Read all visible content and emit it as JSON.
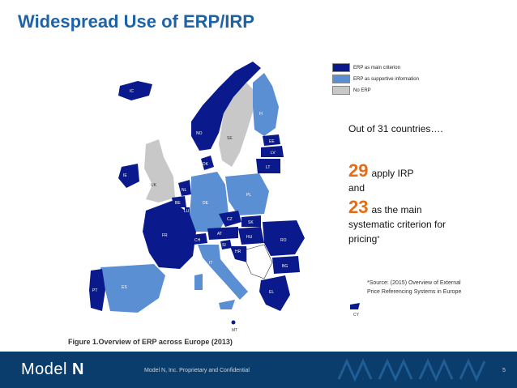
{
  "title": "Widespread Use of ERP/IRP",
  "legend": [
    {
      "label": "ERP as main criterion",
      "color": "#0a1a8c"
    },
    {
      "label": "ERP as supportive information",
      "color": "#5b8fd4"
    },
    {
      "label": "No ERP",
      "color": "#c8c8c8"
    }
  ],
  "map": {
    "countries": {
      "IC": "IC",
      "NO": "NO",
      "SE": "SE",
      "FI": "FI",
      "EE": "EE",
      "LV": "LV",
      "LT": "LT",
      "DK": "DK",
      "UK": "UK",
      "IE": "IE",
      "NL": "NL",
      "BE": "BE",
      "LU": "LU",
      "DE": "DE",
      "PL": "PL",
      "CZ": "CZ",
      "SK": "SK",
      "FR": "FR",
      "CH": "CH",
      "AT": "AT",
      "HU": "HU",
      "SI": "SI",
      "HR": "HR",
      "RO": "RO",
      "BG": "BG",
      "IT": "IT",
      "PT": "PT",
      "ES": "ES",
      "EL": "EL",
      "MT": "MT",
      "CY": "CY"
    },
    "caption": "Figure 1.Overview of ERP across Europe (2013)"
  },
  "stats": {
    "intro": "Out of 31 countries….",
    "count_irp": "29",
    "irp_text": "apply IRP",
    "and": "and",
    "count_main": "23",
    "main_text_1": "as the main",
    "main_text_2": "systematic criterion for",
    "main_text_3": "pricing",
    "asterisk": "*"
  },
  "source": {
    "line1": "*Source: (2015) Overview of External",
    "line2": "Price Referencing Systems in Europe"
  },
  "footer": {
    "logo_a": "Model ",
    "logo_b": "N",
    "confidential": "Model N, Inc. Proprietary and Confidential",
    "page": "5"
  }
}
